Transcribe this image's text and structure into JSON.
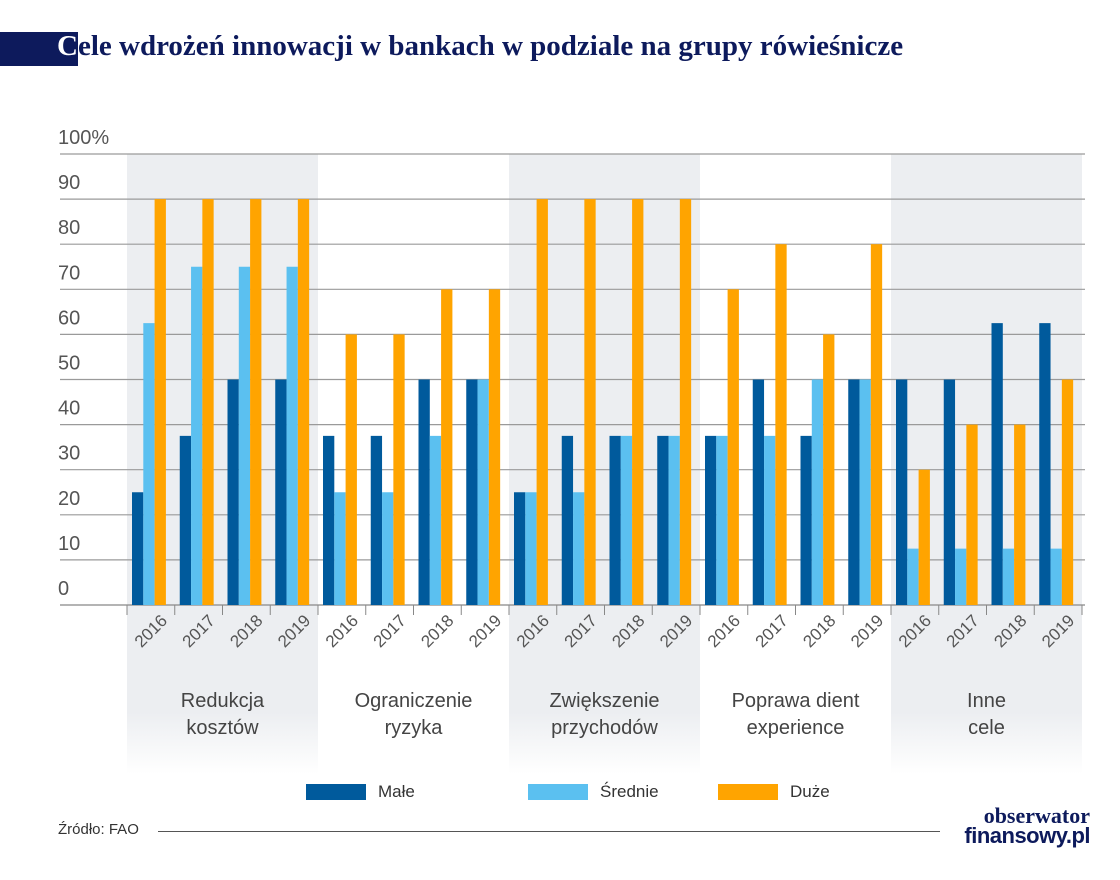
{
  "title_first": "C",
  "title_rest": "ele wdrożeń innowacji w bankach w podziale na grupy rówieśnicze",
  "source": "Źródło: FAO",
  "logo": {
    "line1": "obserwator",
    "line2": "finansowy.pl"
  },
  "colors": {
    "male": "#005a9c",
    "srednie": "#5bc0f0",
    "duze": "#ffa400",
    "band": "#eceef1",
    "title": "#0d1a5c"
  },
  "chart_data": {
    "type": "bar",
    "title": "Cele wdrożeń innowacji w bankach w podziale na grupy rówieśnicze",
    "ylim": [
      0,
      100
    ],
    "yticks": [
      "0",
      "10",
      "20",
      "30",
      "40",
      "50",
      "60",
      "70",
      "80",
      "90",
      "100%"
    ],
    "grid": true,
    "legend_position": "bottom",
    "years": [
      "2016",
      "2017",
      "2018",
      "2019"
    ],
    "groups": [
      {
        "label": [
          "Redukcja",
          "kosztów"
        ],
        "shaded": true,
        "Małe": [
          25,
          37.5,
          50,
          50
        ],
        "Średnie": [
          62.5,
          75,
          75,
          75
        ],
        "Duże": [
          90,
          90,
          90,
          90
        ]
      },
      {
        "label": [
          "Ograniczenie",
          "ryzyka"
        ],
        "shaded": false,
        "Małe": [
          37.5,
          37.5,
          50,
          50
        ],
        "Średnie": [
          25,
          25,
          37.5,
          50
        ],
        "Duże": [
          60,
          60,
          70,
          70
        ]
      },
      {
        "label": [
          "Zwiększenie",
          "przychodów"
        ],
        "shaded": true,
        "Małe": [
          25,
          37.5,
          37.5,
          37.5
        ],
        "Średnie": [
          25,
          25,
          37.5,
          37.5
        ],
        "Duże": [
          90,
          90,
          90,
          90
        ]
      },
      {
        "label": [
          "Poprawa dient",
          "experience"
        ],
        "shaded": false,
        "Małe": [
          37.5,
          50,
          37.5,
          50
        ],
        "Średnie": [
          37.5,
          37.5,
          50,
          50
        ],
        "Duże": [
          70,
          80,
          60,
          80
        ]
      },
      {
        "label": [
          "Inne",
          "cele"
        ],
        "shaded": true,
        "Małe": [
          50,
          50,
          62.5,
          62.5
        ],
        "Średnie": [
          12.5,
          12.5,
          12.5,
          12.5
        ],
        "Duże": [
          30,
          40,
          40,
          50
        ]
      }
    ],
    "series": [
      {
        "name": "Małe",
        "color": "#005a9c"
      },
      {
        "name": "Średnie",
        "color": "#5bc0f0"
      },
      {
        "name": "Duże",
        "color": "#ffa400"
      }
    ]
  }
}
